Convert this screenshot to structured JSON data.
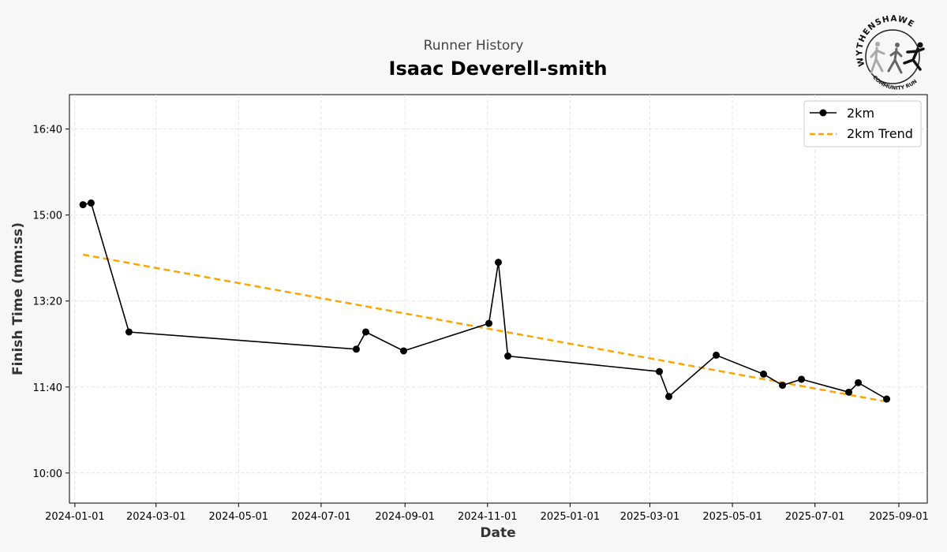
{
  "header": {
    "subtitle": "Runner History",
    "title": "Isaac Deverell-smith"
  },
  "logo": {
    "top_text": "WYTHENSHAWE",
    "bottom_text": "COMMUNITY RUN"
  },
  "chart_data": {
    "type": "line",
    "title": "Isaac Deverell-smith",
    "subtitle": "Runner History",
    "xlabel": "Date",
    "ylabel": "Finish Time (mm:ss)",
    "x_ticks": [
      "2024-01-01",
      "2024-03-01",
      "2024-05-01",
      "2024-07-01",
      "2024-09-01",
      "2024-11-01",
      "2025-01-01",
      "2025-03-01",
      "2025-05-01",
      "2025-07-01",
      "2025-09-01"
    ],
    "y_ticks": [
      "10:00",
      "11:40",
      "13:20",
      "15:00",
      "16:40"
    ],
    "xlim": [
      "2023-12-28",
      "2025-09-22"
    ],
    "ylim_seconds": [
      565,
      1040
    ],
    "grid": true,
    "legend_position": "top-right",
    "series": [
      {
        "name": "2km",
        "style": "solid-with-markers",
        "color": "#000000",
        "x": [
          "2024-01-07",
          "2024-01-13",
          "2024-02-10",
          "2024-07-27",
          "2024-08-03",
          "2024-08-31",
          "2024-11-02",
          "2024-11-09",
          "2024-11-16",
          "2025-03-08",
          "2025-03-15",
          "2025-04-19",
          "2025-05-24",
          "2025-06-07",
          "2025-06-21",
          "2025-07-26",
          "2025-08-02",
          "2025-08-23"
        ],
        "y": [
          "15:12",
          "15:14",
          "12:44",
          "12:24",
          "12:44",
          "12:22",
          "12:54",
          "14:05",
          "12:16",
          "11:58",
          "11:29",
          "12:17",
          "11:55",
          "11:42",
          "11:49",
          "11:34",
          "11:45",
          "11:26"
        ]
      },
      {
        "name": "2km Trend",
        "style": "dashed",
        "color": "#ffa500",
        "x": [
          "2024-01-07",
          "2025-08-23"
        ],
        "y": [
          "14:14",
          "11:23"
        ]
      }
    ]
  }
}
